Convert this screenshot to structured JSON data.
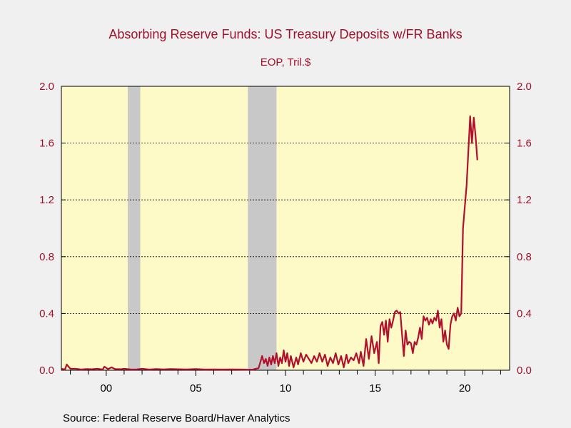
{
  "chart_data": {
    "type": "line",
    "title": "Absorbing Reserve Funds: US Treasury Deposits w/FR Banks",
    "subtitle": "EOP, Tril.$",
    "source": "Source:  Federal Reserve Board/Haver Analytics",
    "xlim": [
      1997.5,
      2022.5
    ],
    "ylim": [
      0.0,
      2.0
    ],
    "y_ticks": [
      "0.0",
      "0.4",
      "0.8",
      "1.2",
      "1.6",
      "2.0"
    ],
    "y_tick_values": [
      0.0,
      0.4,
      0.8,
      1.2,
      1.6,
      2.0
    ],
    "x_tick_labels": [
      "00",
      "05",
      "10",
      "15",
      "20"
    ],
    "x_tick_values": [
      2000,
      2005,
      2010,
      2015,
      2020
    ],
    "grid": "horizontal dotted",
    "dual_axis": true,
    "colors": {
      "line": "#b0102c",
      "plot_bg": "#fdfac8",
      "recession": "#c8c8c8",
      "text": "#a0102a"
    },
    "recessions": [
      {
        "start": 2001.2,
        "end": 2001.9
      },
      {
        "start": 2007.9,
        "end": 2009.5
      }
    ],
    "series": [
      {
        "values": [
          [
            1997.5,
            0.01
          ],
          [
            1997.7,
            0.005
          ],
          [
            1997.8,
            0.04
          ],
          [
            1998.0,
            0.01
          ],
          [
            1998.3,
            0.01
          ],
          [
            1998.6,
            0.005
          ],
          [
            1998.9,
            0.008
          ],
          [
            1999.2,
            0.007
          ],
          [
            1999.5,
            0.01
          ],
          [
            1999.8,
            0.005
          ],
          [
            1999.9,
            0.025
          ],
          [
            2000.1,
            0.008
          ],
          [
            2000.3,
            0.02
          ],
          [
            2000.5,
            0.008
          ],
          [
            2000.8,
            0.007
          ],
          [
            2001.0,
            0.01
          ],
          [
            2001.4,
            0.005
          ],
          [
            2001.7,
            0.006
          ],
          [
            2002.0,
            0.01
          ],
          [
            2002.4,
            0.005
          ],
          [
            2002.8,
            0.008
          ],
          [
            2003.2,
            0.006
          ],
          [
            2003.6,
            0.008
          ],
          [
            2004.0,
            0.007
          ],
          [
            2004.5,
            0.006
          ],
          [
            2005.0,
            0.008
          ],
          [
            2005.5,
            0.005
          ],
          [
            2006.0,
            0.006
          ],
          [
            2006.5,
            0.005
          ],
          [
            2007.0,
            0.006
          ],
          [
            2007.5,
            0.005
          ],
          [
            2007.9,
            0.004
          ],
          [
            2008.2,
            0.005
          ],
          [
            2008.5,
            0.015
          ],
          [
            2008.7,
            0.1
          ],
          [
            2008.8,
            0.05
          ],
          [
            2008.9,
            0.08
          ],
          [
            2009.0,
            0.03
          ],
          [
            2009.1,
            0.09
          ],
          [
            2009.2,
            0.04
          ],
          [
            2009.3,
            0.1
          ],
          [
            2009.4,
            0.05
          ],
          [
            2009.5,
            0.12
          ],
          [
            2009.6,
            0.03
          ],
          [
            2009.7,
            0.09
          ],
          [
            2009.8,
            0.05
          ],
          [
            2009.9,
            0.14
          ],
          [
            2010.0,
            0.06
          ],
          [
            2010.1,
            0.12
          ],
          [
            2010.2,
            0.03
          ],
          [
            2010.3,
            0.1
          ],
          [
            2010.45,
            0.02
          ],
          [
            2010.6,
            0.09
          ],
          [
            2010.7,
            0.04
          ],
          [
            2010.85,
            0.12
          ],
          [
            2011.0,
            0.06
          ],
          [
            2011.15,
            0.11
          ],
          [
            2011.3,
            0.08
          ],
          [
            2011.45,
            0.05
          ],
          [
            2011.6,
            0.1
          ],
          [
            2011.75,
            0.06
          ],
          [
            2011.9,
            0.12
          ],
          [
            2012.05,
            0.06
          ],
          [
            2012.2,
            0.11
          ],
          [
            2012.35,
            0.03
          ],
          [
            2012.5,
            0.09
          ],
          [
            2012.65,
            0.05
          ],
          [
            2012.8,
            0.12
          ],
          [
            2012.95,
            0.04
          ],
          [
            2013.1,
            0.1
          ],
          [
            2013.25,
            0.02
          ],
          [
            2013.4,
            0.11
          ],
          [
            2013.5,
            0.05
          ],
          [
            2013.65,
            0.09
          ],
          [
            2013.8,
            0.07
          ],
          [
            2013.95,
            0.12
          ],
          [
            2014.1,
            0.05
          ],
          [
            2014.2,
            0.13
          ],
          [
            2014.35,
            0.03
          ],
          [
            2014.5,
            0.22
          ],
          [
            2014.65,
            0.08
          ],
          [
            2014.8,
            0.24
          ],
          [
            2014.95,
            0.12
          ],
          [
            2015.1,
            0.2
          ],
          [
            2015.2,
            0.05
          ],
          [
            2015.3,
            0.31
          ],
          [
            2015.4,
            0.34
          ],
          [
            2015.5,
            0.25
          ],
          [
            2015.6,
            0.35
          ],
          [
            2015.7,
            0.2
          ],
          [
            2015.8,
            0.36
          ],
          [
            2015.9,
            0.3
          ],
          [
            2016.0,
            0.35
          ],
          [
            2016.1,
            0.41
          ],
          [
            2016.2,
            0.42
          ],
          [
            2016.3,
            0.4
          ],
          [
            2016.4,
            0.41
          ],
          [
            2016.5,
            0.25
          ],
          [
            2016.6,
            0.1
          ],
          [
            2016.7,
            0.28
          ],
          [
            2016.8,
            0.18
          ],
          [
            2016.9,
            0.2
          ],
          [
            2017.0,
            0.19
          ],
          [
            2017.1,
            0.12
          ],
          [
            2017.2,
            0.2
          ],
          [
            2017.3,
            0.18
          ],
          [
            2017.4,
            0.23
          ],
          [
            2017.5,
            0.3
          ],
          [
            2017.6,
            0.22
          ],
          [
            2017.7,
            0.38
          ],
          [
            2017.8,
            0.35
          ],
          [
            2017.9,
            0.37
          ],
          [
            2018.0,
            0.32
          ],
          [
            2018.1,
            0.36
          ],
          [
            2018.2,
            0.33
          ],
          [
            2018.3,
            0.37
          ],
          [
            2018.4,
            0.35
          ],
          [
            2018.5,
            0.42
          ],
          [
            2018.6,
            0.3
          ],
          [
            2018.7,
            0.36
          ],
          [
            2018.8,
            0.2
          ],
          [
            2018.9,
            0.28
          ],
          [
            2019.0,
            0.18
          ],
          [
            2019.1,
            0.15
          ],
          [
            2019.2,
            0.32
          ],
          [
            2019.3,
            0.38
          ],
          [
            2019.4,
            0.4
          ],
          [
            2019.5,
            0.35
          ],
          [
            2019.6,
            0.44
          ],
          [
            2019.7,
            0.38
          ],
          [
            2019.8,
            0.4
          ],
          [
            2019.9,
            1.0
          ],
          [
            2020.1,
            1.3
          ],
          [
            2020.3,
            1.79
          ],
          [
            2020.4,
            1.6
          ],
          [
            2020.5,
            1.78
          ],
          [
            2020.6,
            1.65
          ],
          [
            2020.7,
            1.48
          ]
        ]
      }
    ]
  }
}
